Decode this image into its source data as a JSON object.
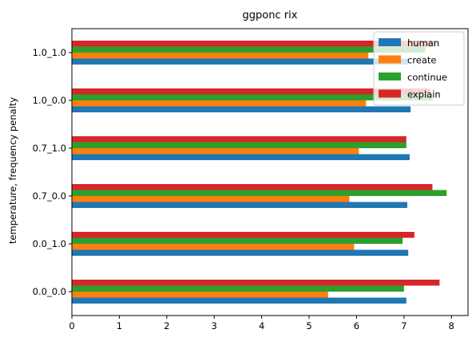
{
  "chart_data": {
    "type": "bar",
    "orientation": "horizontal",
    "title": "ggponc rix",
    "xlabel": "",
    "ylabel": "temperature, frequency penalty",
    "categories": [
      "0.0_0.0",
      "0.0_1.0",
      "0.7_0.0",
      "0.7_1.0",
      "1.0_0.0",
      "1.0_1.0"
    ],
    "xlim": [
      0,
      8.35
    ],
    "xticks": [
      "0",
      "1",
      "2",
      "3",
      "4",
      "5",
      "6",
      "7",
      "8"
    ],
    "grid": false,
    "legend_position": "top-right",
    "series": [
      {
        "name": "human",
        "color": "#1f77b4",
        "values": [
          7.05,
          7.09,
          7.07,
          7.12,
          7.14,
          7.1
        ]
      },
      {
        "name": "create",
        "color": "#ff7f0e",
        "values": [
          5.4,
          5.95,
          5.85,
          6.05,
          6.2,
          6.25
        ]
      },
      {
        "name": "continue",
        "color": "#2ca02c",
        "values": [
          7.0,
          6.97,
          7.9,
          7.05,
          7.6,
          7.45
        ]
      },
      {
        "name": "explain",
        "color": "#d62728",
        "values": [
          7.75,
          7.22,
          7.6,
          7.05,
          7.55,
          7.65
        ]
      }
    ]
  }
}
